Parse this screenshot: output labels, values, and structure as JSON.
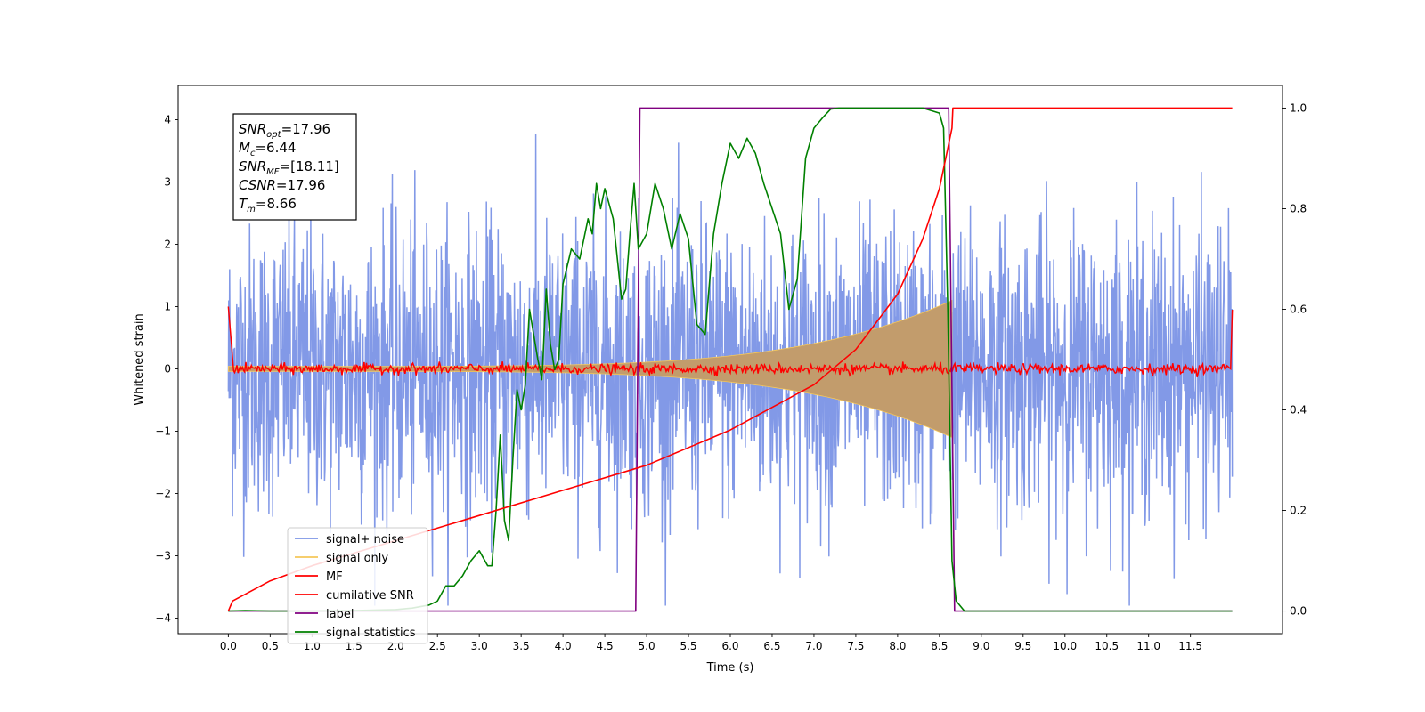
{
  "chart_data": {
    "type": "line",
    "title": "",
    "xlabel": "Time (s)",
    "ylabel": "Whitened strain",
    "xlim": [
      -0.6,
      12.6
    ],
    "ylim": [
      -4.25,
      4.55
    ],
    "y2lim": [
      -0.045,
      1.045
    ],
    "xticks": [
      "0.0",
      "0.5",
      "1.0",
      "1.5",
      "2.0",
      "2.5",
      "3.0",
      "3.5",
      "4.0",
      "4.5",
      "5.0",
      "5.5",
      "6.0",
      "6.5",
      "7.0",
      "7.5",
      "8.0",
      "8.5",
      "9.0",
      "9.5",
      "10.0",
      "10.5",
      "11.0",
      "11.5"
    ],
    "yticks": [
      "4",
      "3",
      "2",
      "1",
      "0",
      "−1",
      "−2",
      "−3",
      "−4"
    ],
    "y2ticks": [
      "1.0",
      "0.8",
      "0.6",
      "0.4",
      "0.2",
      "0.0"
    ],
    "grid": false,
    "legend_position": "lower-left",
    "annotation": {
      "lines": [
        {
          "name": "SNR",
          "sub": "opt",
          "value": "=17.96"
        },
        {
          "name": "M",
          "sub": "c",
          "value": "=6.44"
        },
        {
          "name": "SNR",
          "sub": "MF",
          "value": "=[18.11]"
        },
        {
          "name": "CSNR",
          "sub": "",
          "value": "=17.96"
        },
        {
          "name": "T",
          "sub": "m",
          "value": "=8.66"
        }
      ]
    },
    "series": [
      {
        "name": "signal+ noise",
        "color": "#7b94e6",
        "axis": "left",
        "description": "noise band ~±2 whitened strain, peaks to ~±4, 0–12 s"
      },
      {
        "name": "signal only",
        "color": "#f5c75a",
        "axis": "left",
        "description": "chirp envelope 0.04 at 0 s growing to ~1.1 at 8.65 s, 0 after"
      },
      {
        "name": "MF",
        "color": "#ff0000",
        "axis": "left",
        "description": "matched-filter output ~0 ± 0.08, 1.0 at edges"
      },
      {
        "name": "cumilative SNR",
        "color": "#ff0000",
        "axis": "right",
        "x": [
          0.0,
          0.05,
          0.5,
          1.0,
          2.0,
          3.0,
          4.0,
          5.0,
          6.0,
          7.0,
          7.5,
          8.0,
          8.3,
          8.5,
          8.65,
          8.66,
          12.0
        ],
        "y": [
          0.0,
          0.02,
          0.06,
          0.09,
          0.14,
          0.19,
          0.24,
          0.29,
          0.36,
          0.45,
          0.52,
          0.63,
          0.74,
          0.84,
          0.96,
          1.0,
          1.0
        ]
      },
      {
        "name": "label",
        "color": "#800080",
        "axis": "right",
        "x": [
          0.0,
          4.87,
          4.92,
          8.61,
          8.68,
          12.0
        ],
        "y": [
          0.0,
          0.0,
          1.0,
          1.0,
          0.0,
          0.0
        ]
      },
      {
        "name": "signal statistics",
        "color": "#008000",
        "axis": "right",
        "x": [
          0.0,
          0.2,
          0.5,
          1.0,
          1.5,
          2.0,
          2.2,
          2.4,
          2.5,
          2.6,
          2.7,
          2.8,
          2.9,
          3.0,
          3.1,
          3.15,
          3.2,
          3.25,
          3.3,
          3.35,
          3.4,
          3.45,
          3.5,
          3.55,
          3.6,
          3.7,
          3.75,
          3.8,
          3.85,
          3.9,
          3.95,
          4.0,
          4.1,
          4.2,
          4.3,
          4.35,
          4.4,
          4.45,
          4.5,
          4.6,
          4.7,
          4.75,
          4.8,
          4.85,
          4.9,
          5.0,
          5.1,
          5.2,
          5.3,
          5.4,
          5.5,
          5.6,
          5.7,
          5.8,
          5.9,
          6.0,
          6.1,
          6.2,
          6.3,
          6.4,
          6.5,
          6.6,
          6.7,
          6.8,
          6.9,
          7.0,
          7.1,
          7.2,
          7.3,
          7.4,
          7.5,
          7.7,
          8.0,
          8.3,
          8.5,
          8.55,
          8.6,
          8.65,
          8.7,
          8.8,
          9.0,
          12.0
        ],
        "y": [
          0.0,
          0.001,
          0.0,
          0.0,
          0.001,
          0.003,
          0.006,
          0.012,
          0.02,
          0.05,
          0.05,
          0.07,
          0.1,
          0.12,
          0.09,
          0.09,
          0.2,
          0.35,
          0.18,
          0.14,
          0.3,
          0.44,
          0.4,
          0.45,
          0.6,
          0.5,
          0.46,
          0.64,
          0.53,
          0.48,
          0.5,
          0.65,
          0.72,
          0.7,
          0.78,
          0.75,
          0.85,
          0.8,
          0.84,
          0.78,
          0.62,
          0.64,
          0.75,
          0.85,
          0.72,
          0.75,
          0.85,
          0.8,
          0.72,
          0.79,
          0.74,
          0.57,
          0.55,
          0.75,
          0.85,
          0.93,
          0.9,
          0.94,
          0.91,
          0.85,
          0.8,
          0.75,
          0.6,
          0.66,
          0.9,
          0.96,
          0.98,
          0.998,
          1.0,
          1.0,
          1.0,
          1.0,
          1.0,
          1.0,
          0.99,
          0.96,
          0.6,
          0.1,
          0.02,
          0.0,
          0.0,
          0.0
        ]
      }
    ]
  }
}
